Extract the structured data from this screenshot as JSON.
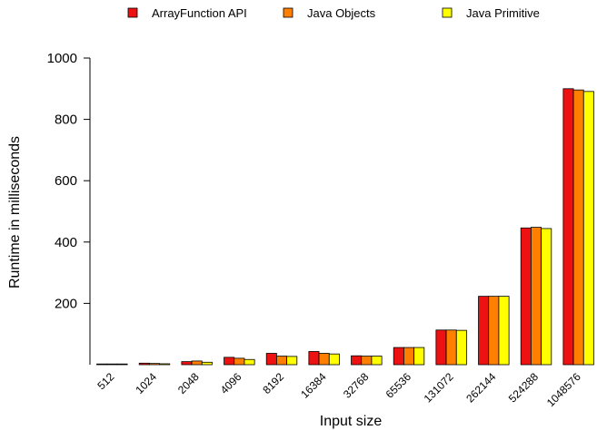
{
  "chart_data": {
    "type": "bar",
    "title": "",
    "xlabel": "Input size",
    "ylabel": "Runtime in milliseconds",
    "categories": [
      "512",
      "1024",
      "2048",
      "4096",
      "8192",
      "16384",
      "32768",
      "65536",
      "131072",
      "262144",
      "524288",
      "1048576"
    ],
    "series": [
      {
        "name": "ArrayFunction API",
        "color": "#ee1111",
        "values": [
          2,
          5,
          10,
          24,
          37,
          43,
          29,
          56,
          113,
          223,
          446,
          900
        ]
      },
      {
        "name": "Java Objects",
        "color": "#ff8000",
        "values": [
          2,
          4,
          12,
          21,
          28,
          37,
          28,
          56,
          113,
          223,
          448,
          896
        ]
      },
      {
        "name": "Java Primitive",
        "color": "#ffff00",
        "values": [
          1,
          3,
          8,
          17,
          27,
          35,
          28,
          56,
          112,
          223,
          444,
          891
        ]
      }
    ],
    "ylim": [
      0,
      1000
    ],
    "yticks": [
      200,
      400,
      600,
      800,
      1000
    ],
    "grid": false,
    "legend_position": "top"
  }
}
